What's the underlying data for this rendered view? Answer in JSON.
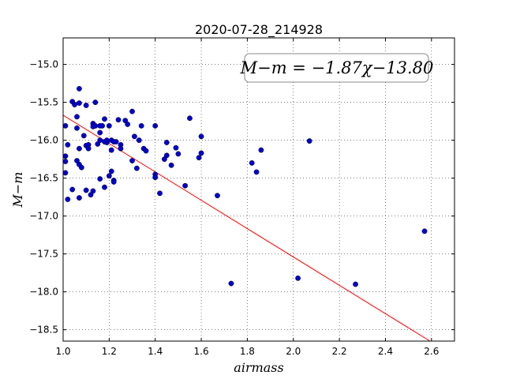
{
  "chart_data": {
    "type": "scatter",
    "title": "2020-07-28_214928",
    "xlabel": "airmass",
    "ylabel": "M−m",
    "xlim": [
      1.0,
      2.7
    ],
    "ylim": [
      -18.65,
      -14.65
    ],
    "xticks": [
      1.0,
      1.2,
      1.4,
      1.6,
      1.8,
      2.0,
      2.2,
      2.4,
      2.6
    ],
    "xtick_labels": [
      "1.0",
      "1.2",
      "1.4",
      "1.6",
      "1.8",
      "2.0",
      "2.2",
      "2.4",
      "2.6"
    ],
    "yticks": [
      -15.0,
      -15.5,
      -16.0,
      -16.5,
      -17.0,
      -17.5,
      -18.0,
      -18.5
    ],
    "ytick_labels": [
      "−15.0",
      "−15.5",
      "−16.0",
      "−16.5",
      "−17.0",
      "−17.5",
      "−18.0",
      "−18.5"
    ],
    "grid": true,
    "annotation": "M−m = −1.87χ−13.80",
    "fit": {
      "slope": -1.87,
      "intercept": -13.8,
      "color": "#ff0000"
    },
    "marker_color": "#0000cc",
    "points": [
      [
        1.01,
        -16.21
      ],
      [
        1.01,
        -16.28
      ],
      [
        1.01,
        -16.43
      ],
      [
        1.01,
        -15.81
      ],
      [
        1.02,
        -16.06
      ],
      [
        1.02,
        -16.78
      ],
      [
        1.04,
        -15.49
      ],
      [
        1.04,
        -16.65
      ],
      [
        1.05,
        -15.53
      ],
      [
        1.06,
        -15.69
      ],
      [
        1.06,
        -16.27
      ],
      [
        1.06,
        -15.84
      ],
      [
        1.07,
        -15.32
      ],
      [
        1.07,
        -15.51
      ],
      [
        1.07,
        -16.11
      ],
      [
        1.07,
        -16.32
      ],
      [
        1.07,
        -16.76
      ],
      [
        1.08,
        -16.36
      ],
      [
        1.09,
        -15.94
      ],
      [
        1.1,
        -15.54
      ],
      [
        1.1,
        -16.07
      ],
      [
        1.1,
        -16.66
      ],
      [
        1.11,
        -16.06
      ],
      [
        1.11,
        -16.11
      ],
      [
        1.12,
        -16.72
      ],
      [
        1.13,
        -15.78
      ],
      [
        1.13,
        -15.82
      ],
      [
        1.13,
        -16.67
      ],
      [
        1.14,
        -15.5
      ],
      [
        1.14,
        -15.81
      ],
      [
        1.15,
        -16.05
      ],
      [
        1.16,
        -15.81
      ],
      [
        1.16,
        -15.9
      ],
      [
        1.16,
        -16.0
      ],
      [
        1.16,
        -16.51
      ],
      [
        1.17,
        -15.81
      ],
      [
        1.18,
        -16.02
      ],
      [
        1.18,
        -15.72
      ],
      [
        1.18,
        -16.62
      ],
      [
        1.19,
        -16.03
      ],
      [
        1.19,
        -16.0
      ],
      [
        1.2,
        -16.47
      ],
      [
        1.2,
        -15.81
      ],
      [
        1.21,
        -16.0
      ],
      [
        1.21,
        -16.13
      ],
      [
        1.21,
        -16.41
      ],
      [
        1.22,
        -16.02
      ],
      [
        1.22,
        -16.53
      ],
      [
        1.22,
        -16.55
      ],
      [
        1.23,
        -16.02
      ],
      [
        1.24,
        -15.73
      ],
      [
        1.25,
        -16.06
      ],
      [
        1.25,
        -16.11
      ],
      [
        1.27,
        -15.74
      ],
      [
        1.28,
        -15.79
      ],
      [
        1.3,
        -15.62
      ],
      [
        1.3,
        -16.27
      ],
      [
        1.31,
        -15.95
      ],
      [
        1.32,
        -16.37
      ],
      [
        1.33,
        -16.0
      ],
      [
        1.34,
        -15.81
      ],
      [
        1.35,
        -16.11
      ],
      [
        1.36,
        -16.14
      ],
      [
        1.4,
        -16.45
      ],
      [
        1.4,
        -16.49
      ],
      [
        1.4,
        -15.81
      ],
      [
        1.42,
        -16.7
      ],
      [
        1.44,
        -16.25
      ],
      [
        1.45,
        -16.2
      ],
      [
        1.45,
        -16.03
      ],
      [
        1.47,
        -16.33
      ],
      [
        1.49,
        -16.1
      ],
      [
        1.5,
        -16.18
      ],
      [
        1.53,
        -16.6
      ],
      [
        1.55,
        -15.71
      ],
      [
        1.59,
        -16.23
      ],
      [
        1.6,
        -15.95
      ],
      [
        1.6,
        -16.17
      ],
      [
        1.67,
        -16.73
      ],
      [
        1.73,
        -17.89
      ],
      [
        1.82,
        -16.3
      ],
      [
        1.84,
        -16.42
      ],
      [
        1.86,
        -16.13
      ],
      [
        2.02,
        -17.82
      ],
      [
        2.07,
        -16.01
      ],
      [
        2.27,
        -17.9
      ],
      [
        2.57,
        -17.2
      ]
    ]
  }
}
